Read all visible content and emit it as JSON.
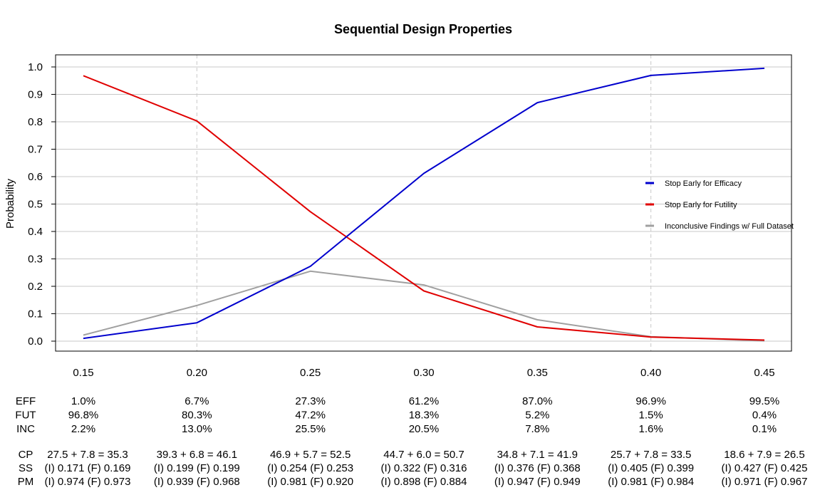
{
  "chart_data": {
    "type": "line",
    "title": "Sequential Design Properties",
    "xlabel": "",
    "ylabel": "Probability",
    "ylim": [
      0,
      1
    ],
    "grid": true,
    "legend_position": "right",
    "x": [
      0.15,
      0.2,
      0.25,
      0.3,
      0.35,
      0.4,
      0.45
    ],
    "x_tick_labels": [
      "0.15",
      "0.20",
      "0.25",
      "0.30",
      "0.35",
      "0.40",
      "0.45"
    ],
    "y_tick_labels": [
      "0.0",
      "0.1",
      "0.2",
      "0.3",
      "0.4",
      "0.5",
      "0.6",
      "0.7",
      "0.8",
      "0.9",
      "1.0"
    ],
    "dashed_vertical_lines": [
      0.2,
      0.4
    ],
    "series": [
      {
        "name": "Stop Early for Efficacy",
        "color": "#0000cd",
        "values": [
          0.01,
          0.067,
          0.273,
          0.612,
          0.87,
          0.969,
          0.995
        ]
      },
      {
        "name": "Stop Early for Futility",
        "color": "#e00000",
        "values": [
          0.968,
          0.803,
          0.472,
          0.183,
          0.052,
          0.015,
          0.004
        ]
      },
      {
        "name": "Inconclusive Findings w/ Full Dataset",
        "color": "#a0a0a0",
        "values": [
          0.022,
          0.13,
          0.255,
          0.205,
          0.078,
          0.016,
          0.001
        ]
      }
    ]
  },
  "table": {
    "rows_a": [
      {
        "label": "EFF",
        "values": [
          "1.0%",
          "6.7%",
          "27.3%",
          "61.2%",
          "87.0%",
          "96.9%",
          "99.5%"
        ]
      },
      {
        "label": "FUT",
        "values": [
          "96.8%",
          "80.3%",
          "47.2%",
          "18.3%",
          "5.2%",
          "1.5%",
          "0.4%"
        ]
      },
      {
        "label": "INC",
        "values": [
          "2.2%",
          "13.0%",
          "25.5%",
          "20.5%",
          "7.8%",
          "1.6%",
          "0.1%"
        ]
      }
    ],
    "rows_b": [
      {
        "label": "CP",
        "values": [
          "27.5 + 7.8 = 35.3",
          "39.3 + 6.8 = 46.1",
          "46.9 + 5.7 = 52.5",
          "44.7 + 6.0 = 50.7",
          "34.8 + 7.1 = 41.9",
          "25.7 + 7.8 = 33.5",
          "18.6 + 7.9 = 26.5"
        ]
      },
      {
        "label": "SS",
        "values": [
          "(I) 0.171 (F) 0.169",
          "(I) 0.199 (F) 0.199",
          "(I) 0.254 (F) 0.253",
          "(I) 0.322 (F) 0.316",
          "(I) 0.376 (F) 0.368",
          "(I) 0.405 (F) 0.399",
          "(I) 0.427 (F) 0.425"
        ]
      },
      {
        "label": "PM",
        "values": [
          "(I) 0.974 (F) 0.973",
          "(I) 0.939 (F) 0.968",
          "(I) 0.981 (F) 0.920",
          "(I) 0.898 (F) 0.884",
          "(I) 0.947 (F) 0.949",
          "(I) 0.981 (F) 0.984",
          "(I) 0.971 (F) 0.967"
        ]
      }
    ]
  }
}
